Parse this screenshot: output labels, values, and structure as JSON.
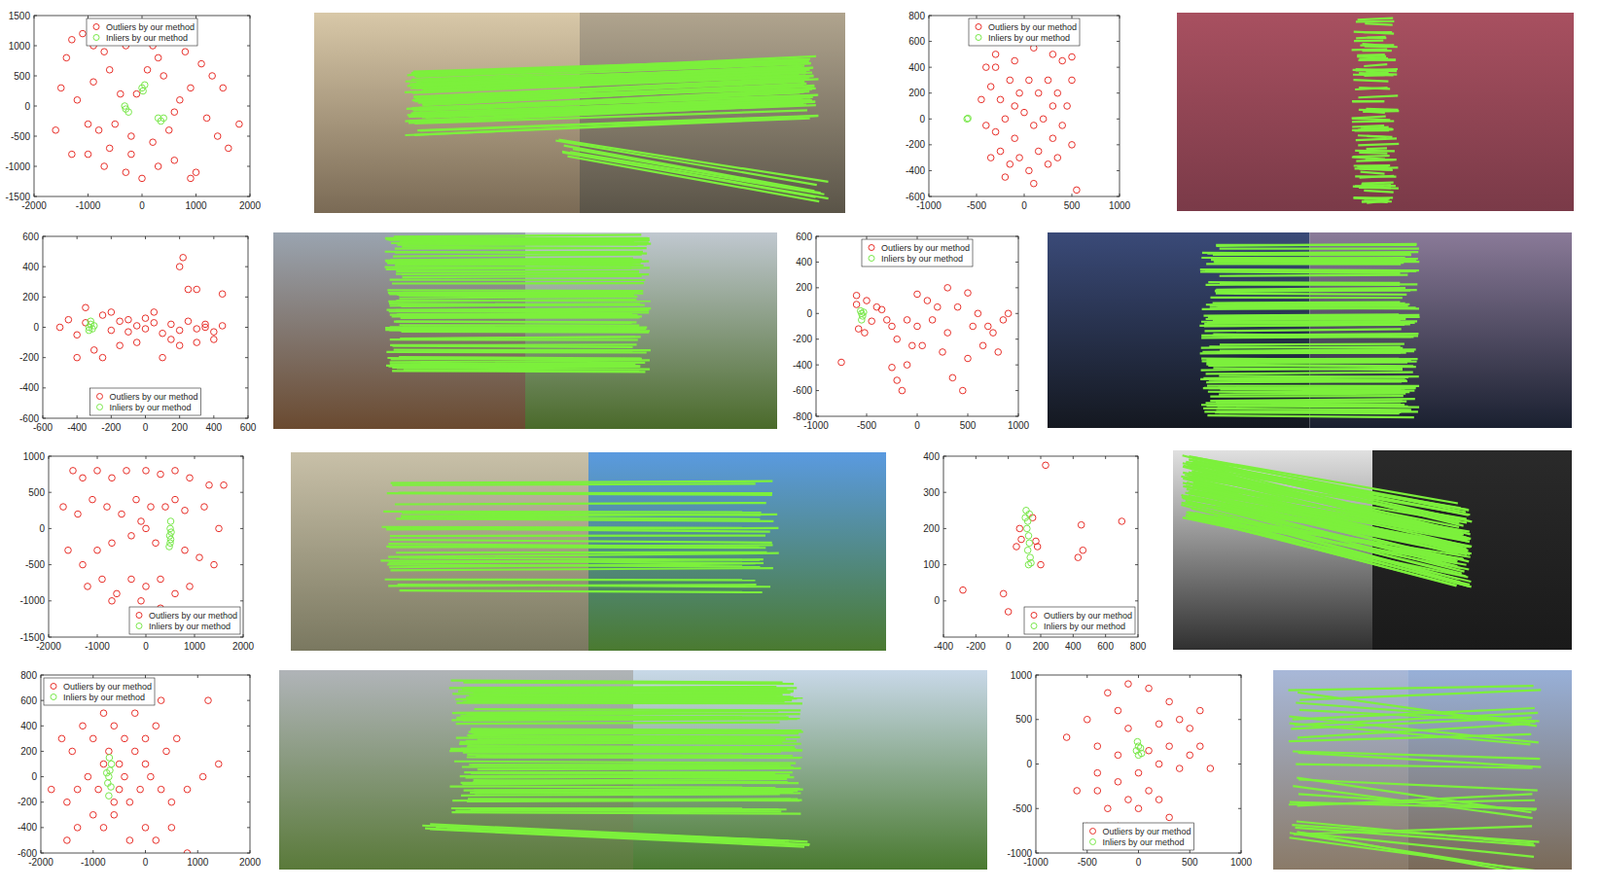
{
  "chart_data": [
    {
      "type": "scatter",
      "xlim": [
        -2000,
        2000
      ],
      "ylim": [
        -1500,
        1500
      ],
      "xticks": [
        -2000,
        -1000,
        0,
        1000,
        2000
      ],
      "yticks": [
        -1500,
        -1000,
        -500,
        0,
        500,
        1000,
        1500
      ],
      "grid": false,
      "legend": "north",
      "series": [
        {
          "name": "Outliers by our method",
          "color": "#e8302a",
          "marker": "circle",
          "x": [
            -1300,
            -1100,
            -1400,
            -900,
            -700,
            -300,
            200,
            500,
            800,
            1100,
            1300,
            1500,
            1800,
            1600,
            1400,
            1000,
            900,
            600,
            300,
            0,
            -300,
            -700,
            -1000,
            -1300,
            -1600,
            -1500,
            -1200,
            -900,
            -600,
            -400,
            -500,
            -800,
            -200,
            200,
            500,
            700,
            400,
            100,
            -100,
            600,
            900,
            -200,
            1200,
            -1000,
            300,
            -600
          ],
          "values": [
            1100,
            1200,
            800,
            1000,
            900,
            1000,
            1000,
            1100,
            900,
            700,
            500,
            300,
            -300,
            -700,
            -500,
            -1100,
            -1200,
            -900,
            -1000,
            -1200,
            -1100,
            -1000,
            -800,
            -800,
            -400,
            300,
            100,
            400,
            600,
            200,
            -300,
            -400,
            -500,
            -600,
            -400,
            100,
            500,
            600,
            200,
            -100,
            300,
            -800,
            -200,
            -300,
            800,
            -700
          ]
        },
        {
          "name": "Inliers by our method",
          "color": "#79e84a",
          "marker": "circle",
          "x": [
            -300,
            -250,
            -320,
            0,
            50,
            20,
            300,
            400,
            350
          ],
          "values": [
            -50,
            -100,
            0,
            300,
            350,
            250,
            -200,
            -200,
            -250
          ]
        }
      ]
    },
    {
      "type": "scatter",
      "xlim": [
        -1000,
        1000
      ],
      "ylim": [
        -600,
        800
      ],
      "xticks": [
        -1000,
        -500,
        0,
        500,
        1000
      ],
      "yticks": [
        -600,
        -400,
        -200,
        0,
        200,
        400,
        600,
        800
      ],
      "grid": false,
      "legend": "north",
      "series": [
        {
          "name": "Outliers by our method",
          "color": "#e8302a",
          "marker": "circle",
          "x": [
            -400,
            -300,
            -200,
            -100,
            0,
            100,
            200,
            300,
            400,
            500,
            -450,
            -350,
            -250,
            -150,
            -50,
            50,
            150,
            250,
            350,
            450,
            -400,
            -300,
            -200,
            -100,
            0,
            100,
            200,
            300,
            400,
            500,
            -350,
            -250,
            -150,
            -50,
            50,
            150,
            250,
            350,
            -200,
            100,
            550,
            -100,
            300,
            -300,
            500
          ],
          "values": [
            400,
            500,
            600,
            450,
            700,
            550,
            650,
            500,
            450,
            480,
            150,
            250,
            150,
            300,
            200,
            300,
            200,
            300,
            200,
            100,
            -50,
            -100,
            0,
            -150,
            50,
            -50,
            0,
            -150,
            -50,
            -200,
            -300,
            -250,
            -350,
            -300,
            -400,
            -250,
            -350,
            -300,
            -450,
            -500,
            -550,
            100,
            100,
            400,
            300
          ]
        },
        {
          "name": "Inliers by our method",
          "color": "#79e84a",
          "marker": "circle",
          "x": [
            -600,
            -590
          ],
          "values": [
            0,
            5
          ]
        }
      ]
    },
    {
      "type": "scatter",
      "xlim": [
        -600,
        600
      ],
      "ylim": [
        -600,
        600
      ],
      "xticks": [
        -600,
        -400,
        -200,
        0,
        200,
        400,
        600
      ],
      "yticks": [
        -600,
        -400,
        -200,
        0,
        200,
        400,
        600
      ],
      "grid": false,
      "legend": "south",
      "series": [
        {
          "name": "Outliers by our method",
          "color": "#e8302a",
          "marker": "circle",
          "x": [
            -500,
            -450,
            -400,
            -350,
            -250,
            -200,
            -150,
            -100,
            -50,
            0,
            50,
            100,
            150,
            200,
            250,
            300,
            350,
            400,
            450,
            -300,
            -250,
            -150,
            -50,
            100,
            200,
            300,
            -400,
            -200,
            50,
            250,
            300,
            450,
            200,
            220,
            350,
            -100,
            0,
            150,
            -350,
            400
          ],
          "values": [
            0,
            50,
            -50,
            30,
            80,
            -20,
            40,
            -30,
            10,
            -10,
            30,
            -40,
            20,
            -20,
            40,
            -10,
            20,
            -30,
            10,
            -150,
            -200,
            -120,
            -100,
            -200,
            -120,
            -100,
            -200,
            100,
            100,
            250,
            250,
            220,
            400,
            460,
            0,
            50,
            60,
            -80,
            130,
            -80
          ]
        },
        {
          "name": "Inliers by our method",
          "color": "#79e84a",
          "marker": "circle",
          "x": [
            -330,
            -320,
            -310,
            -330,
            -300,
            -320
          ],
          "values": [
            0,
            20,
            -10,
            -20,
            10,
            40
          ]
        }
      ]
    },
    {
      "type": "scatter",
      "xlim": [
        -1000,
        1000
      ],
      "ylim": [
        -800,
        600
      ],
      "xticks": [
        -1000,
        -500,
        0,
        500,
        1000
      ],
      "yticks": [
        -800,
        -600,
        -400,
        -200,
        0,
        200,
        400,
        600
      ],
      "grid": false,
      "legend": "north",
      "series": [
        {
          "name": "Outliers by our method",
          "color": "#e8302a",
          "marker": "circle",
          "x": [
            -750,
            -600,
            -600,
            -580,
            -520,
            -450,
            -400,
            -350,
            -300,
            -250,
            -200,
            -250,
            -200,
            -150,
            -100,
            -50,
            0,
            50,
            100,
            150,
            200,
            250,
            300,
            350,
            400,
            450,
            500,
            550,
            600,
            700,
            750,
            800,
            850,
            900,
            -100,
            -500,
            0,
            300,
            500,
            650
          ],
          "values": [
            -380,
            140,
            70,
            -120,
            -150,
            -60,
            50,
            30,
            -50,
            -100,
            -200,
            -420,
            -520,
            -600,
            -400,
            -250,
            150,
            -250,
            100,
            -50,
            50,
            -300,
            -150,
            -500,
            50,
            -600,
            160,
            -100,
            0,
            -100,
            -150,
            -300,
            -50,
            0,
            -50,
            100,
            -100,
            200,
            -350,
            -250
          ]
        },
        {
          "name": "Inliers by our method",
          "color": "#79e84a",
          "marker": "circle",
          "x": [
            -550,
            -540,
            -560,
            -550,
            -530
          ],
          "values": [
            0,
            -20,
            20,
            -50,
            10
          ]
        }
      ]
    },
    {
      "type": "scatter",
      "xlim": [
        -2000,
        2000
      ],
      "ylim": [
        -1500,
        1000
      ],
      "xticks": [
        -2000,
        -1000,
        0,
        1000,
        2000
      ],
      "yticks": [
        -1500,
        -1000,
        -500,
        0,
        500,
        1000
      ],
      "grid": false,
      "legend": "south east",
      "series": [
        {
          "name": "Outliers by our method",
          "color": "#e8302a",
          "marker": "circle",
          "x": [
            -1500,
            -1300,
            -1000,
            -700,
            -400,
            0,
            300,
            600,
            900,
            1300,
            1600,
            -1700,
            -1400,
            -1100,
            -800,
            -500,
            -200,
            100,
            400,
            800,
            1200,
            1500,
            -1600,
            -1300,
            -1000,
            -700,
            -300,
            0,
            200,
            800,
            1100,
            1400,
            -1200,
            -900,
            -600,
            -300,
            0,
            300,
            600,
            900,
            -700,
            -100,
            300,
            -100,
            600
          ],
          "values": [
            800,
            700,
            800,
            700,
            800,
            800,
            750,
            800,
            700,
            600,
            600,
            300,
            200,
            400,
            300,
            200,
            400,
            300,
            300,
            250,
            300,
            0,
            -300,
            -500,
            -300,
            -200,
            -100,
            0,
            -200,
            -300,
            -400,
            -500,
            -800,
            -700,
            -900,
            -700,
            -800,
            -700,
            -900,
            -800,
            -1000,
            -1000,
            -1100,
            100,
            400
          ]
        },
        {
          "name": "Inliers by our method",
          "color": "#79e84a",
          "marker": "circle",
          "x": [
            500,
            510,
            490,
            520,
            500,
            480,
            510
          ],
          "values": [
            -200,
            -150,
            -100,
            -50,
            0,
            -250,
            100
          ]
        }
      ]
    },
    {
      "type": "scatter",
      "xlim": [
        -400,
        800
      ],
      "ylim": [
        -100,
        400
      ],
      "xticks": [
        -400,
        -200,
        0,
        200,
        400,
        600,
        800
      ],
      "yticks": [
        0,
        100,
        200,
        300,
        400
      ],
      "grid": false,
      "legend": "south east",
      "series": [
        {
          "name": "Outliers by our method",
          "color": "#e8302a",
          "marker": "circle",
          "x": [
            -280,
            -30,
            0,
            80,
            170,
            230,
            50,
            70,
            180,
            450,
            430,
            460,
            700,
            200,
            150
          ],
          "values": [
            30,
            20,
            -30,
            170,
            165,
            375,
            150,
            200,
            150,
            210,
            120,
            140,
            220,
            100,
            230
          ]
        },
        {
          "name": "Inliers by our method",
          "color": "#79e84a",
          "marker": "circle",
          "x": [
            110,
            120,
            115,
            125,
            130,
            120,
            135,
            140,
            105,
            130,
            125
          ],
          "values": [
            250,
            220,
            200,
            180,
            160,
            140,
            120,
            105,
            230,
            240,
            100
          ]
        }
      ]
    },
    {
      "type": "scatter",
      "xlim": [
        -2000,
        2000
      ],
      "ylim": [
        -600,
        800
      ],
      "xticks": [
        -2000,
        -1000,
        0,
        1000,
        2000
      ],
      "yticks": [
        -600,
        -400,
        -200,
        0,
        200,
        400,
        600,
        800
      ],
      "grid": false,
      "legend": "north west",
      "series": [
        {
          "name": "Outliers by our method",
          "color": "#e8302a",
          "marker": "circle",
          "x": [
            -1600,
            -1400,
            -1200,
            -1000,
            -800,
            -600,
            -400,
            -200,
            0,
            200,
            400,
            600,
            1200,
            -1800,
            -1500,
            -1300,
            -1100,
            -900,
            -500,
            -400,
            -300,
            -100,
            100,
            300,
            500,
            800,
            1100,
            1400,
            -1500,
            -1300,
            -1000,
            -800,
            -600,
            -300,
            0,
            200,
            500,
            800,
            -700,
            -500,
            -800,
            -600,
            0,
            300,
            -200
          ],
          "values": [
            300,
            200,
            400,
            300,
            500,
            400,
            300,
            200,
            300,
            400,
            200,
            300,
            600,
            -100,
            -200,
            -100,
            0,
            -100,
            -100,
            0,
            -200,
            -100,
            0,
            -100,
            -200,
            -100,
            0,
            100,
            -500,
            -400,
            -300,
            -400,
            -300,
            -500,
            -400,
            -500,
            -400,
            -600,
            200,
            100,
            100,
            -200,
            100,
            600,
            500
          ]
        },
        {
          "name": "Inliers by our method",
          "color": "#79e84a",
          "marker": "circle",
          "x": [
            -700,
            -680,
            -720,
            -650,
            -700,
            -660,
            -740,
            -690
          ],
          "values": [
            0,
            50,
            -50,
            100,
            -150,
            -80,
            30,
            150
          ]
        }
      ]
    },
    {
      "type": "scatter",
      "xlim": [
        -1000,
        1000
      ],
      "ylim": [
        -1000,
        1000
      ],
      "xticks": [
        -1000,
        -500,
        0,
        500,
        1000
      ],
      "yticks": [
        -1000,
        -500,
        0,
        500,
        1000
      ],
      "grid": false,
      "legend": "south",
      "series": [
        {
          "name": "Outliers by our method",
          "color": "#e8302a",
          "marker": "circle",
          "x": [
            -100,
            100,
            -300,
            -200,
            -500,
            -100,
            200,
            400,
            500,
            600,
            300,
            -700,
            -400,
            -200,
            100,
            300,
            500,
            700,
            -600,
            -400,
            -200,
            0,
            200,
            400,
            100,
            -100,
            200,
            -300,
            0,
            300,
            -200,
            -500,
            200,
            600,
            -400
          ],
          "values": [
            900,
            850,
            800,
            600,
            500,
            400,
            450,
            500,
            400,
            600,
            700,
            300,
            200,
            100,
            150,
            200,
            100,
            -50,
            -300,
            -100,
            -200,
            -100,
            0,
            -50,
            -300,
            -400,
            -400,
            -500,
            -500,
            -600,
            -700,
            -700,
            -800,
            200,
            -300
          ]
        },
        {
          "name": "Inliers by our method",
          "color": "#79e84a",
          "marker": "circle",
          "x": [
            0,
            -20,
            20,
            -10,
            30,
            0
          ],
          "values": [
            200,
            150,
            180,
            250,
            120,
            100
          ]
        }
      ]
    }
  ]
}
